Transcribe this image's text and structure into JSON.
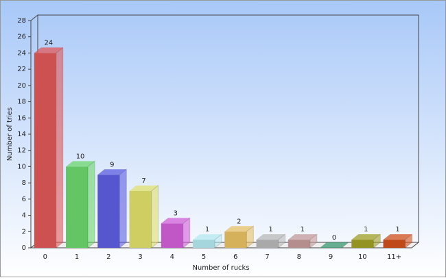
{
  "chart_data": {
    "type": "bar3d",
    "x_label": "Number of rucks",
    "y_label": "Number of tries",
    "categories": [
      "0",
      "1",
      "2",
      "3",
      "4",
      "5",
      "6",
      "7",
      "8",
      "9",
      "10",
      "11+"
    ],
    "values": [
      24,
      10,
      9,
      7,
      3,
      1,
      2,
      1,
      1,
      0,
      1,
      1
    ],
    "colors": [
      "#e05858",
      "#6cd66c",
      "#5e5ee0",
      "#e0e06c",
      "#d25ed8",
      "#b4e8f0",
      "#e8c064",
      "#b8b8b8",
      "#c49a9a",
      "#3a9a70",
      "#a0a024",
      "#d0501c"
    ],
    "ylim": [
      0,
      28
    ],
    "yticks": [
      0,
      2,
      4,
      6,
      8,
      10,
      12,
      14,
      16,
      18,
      20,
      22,
      24,
      26,
      28
    ],
    "grid": false
  }
}
